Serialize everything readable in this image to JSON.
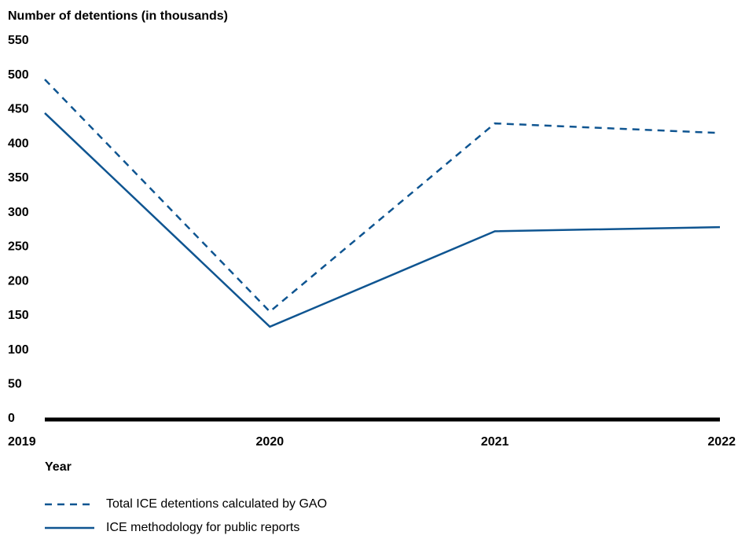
{
  "chart_data": {
    "type": "line",
    "y_axis_label": "Number of detentions (in thousands)",
    "x_axis_label": "Year",
    "categories": [
      "2019",
      "2020",
      "2021",
      "2022"
    ],
    "series": [
      {
        "name": "Total ICE detentions calculated by GAO",
        "color": "#0f5591",
        "style": "dashed",
        "values": [
          495,
          157,
          431,
          417
        ]
      },
      {
        "name": "ICE methodology for public reports",
        "color": "#0f5591",
        "style": "solid",
        "values": [
          446,
          135,
          274,
          280
        ]
      }
    ],
    "ylim": [
      0,
      550
    ],
    "yticks": [
      0,
      50,
      100,
      150,
      200,
      250,
      300,
      350,
      400,
      450,
      500,
      550
    ]
  }
}
